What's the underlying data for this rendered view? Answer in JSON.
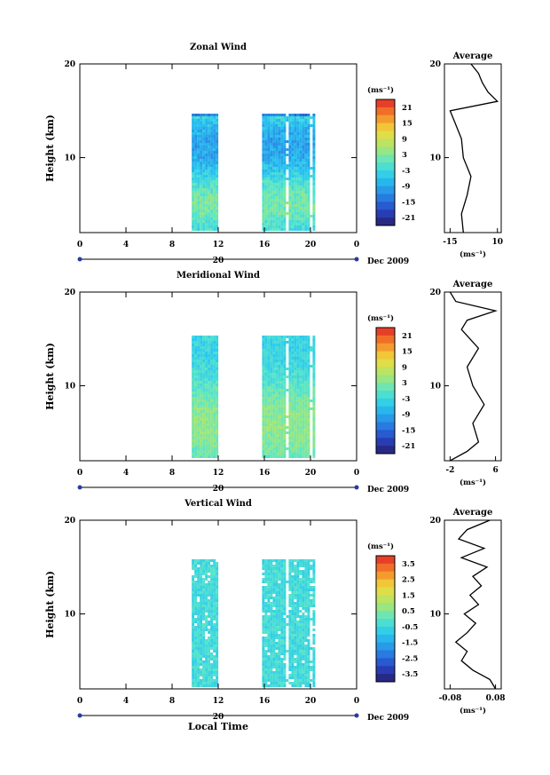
{
  "figure": {
    "xlabel": "Local Time",
    "date_label": "Dec 2009",
    "day_label": "20"
  },
  "chart_data": [
    {
      "type": "heatmap",
      "title": "Zonal Wind",
      "xlabel": "Local Time",
      "ylabel": "Height (km)",
      "xlim": [
        0,
        24
      ],
      "ylim": [
        2,
        20
      ],
      "x_ticks": [
        "0",
        "4",
        "8",
        "12",
        "16",
        "20",
        "0"
      ],
      "y_ticks": [
        "20",
        "10"
      ],
      "data_columns_hours": [
        [
          9.7,
          11.9
        ],
        [
          15.8,
          20.2
        ]
      ],
      "colorbar": {
        "unit": "(ms⁻¹)",
        "range": [
          -24,
          24
        ],
        "ticks": [
          "21",
          "15",
          "9",
          "3",
          "-3",
          "-9",
          "-15",
          "-21"
        ]
      },
      "average_profile": {
        "title": "Average",
        "x_ticks": [
          "-15",
          "10"
        ],
        "xlim": [
          -18,
          12
        ],
        "xlabel": "(ms⁻¹)",
        "heights": [
          2,
          4,
          6,
          8,
          10,
          12,
          14,
          15,
          16,
          17,
          18,
          19,
          20
        ],
        "values": [
          -8,
          -9,
          -6,
          -4,
          -8,
          -9,
          -13,
          -15,
          10,
          5,
          2,
          0,
          -4
        ]
      }
    },
    {
      "type": "heatmap",
      "title": "Meridional Wind",
      "xlabel": "Local Time",
      "ylabel": "Height (km)",
      "xlim": [
        0,
        24
      ],
      "ylim": [
        2,
        20
      ],
      "x_ticks": [
        "0",
        "4",
        "8",
        "12",
        "16",
        "20",
        "0"
      ],
      "y_ticks": [
        "20",
        "10"
      ],
      "data_columns_hours": [
        [
          9.7,
          11.9
        ],
        [
          15.8,
          20.2
        ]
      ],
      "colorbar": {
        "unit": "(ms⁻¹)",
        "range": [
          -24,
          24
        ],
        "ticks": [
          "21",
          "15",
          "9",
          "3",
          "-3",
          "-9",
          "-15",
          "-21"
        ]
      },
      "average_profile": {
        "title": "Average",
        "x_ticks": [
          "-2",
          "6"
        ],
        "xlim": [
          -3,
          7
        ],
        "xlabel": "(ms⁻¹)",
        "heights": [
          2,
          3,
          4,
          6,
          8,
          10,
          12,
          14,
          16,
          17,
          18,
          19,
          20
        ],
        "values": [
          -2,
          1,
          3,
          2,
          4,
          2,
          1,
          3,
          0,
          1,
          6,
          -1,
          -2
        ]
      }
    },
    {
      "type": "heatmap",
      "title": "Vertical Wind",
      "xlabel": "Local Time",
      "ylabel": "Height (km)",
      "xlim": [
        0,
        24
      ],
      "ylim": [
        2,
        20
      ],
      "x_ticks": [
        "0",
        "4",
        "8",
        "12",
        "16",
        "20",
        "0"
      ],
      "y_ticks": [
        "20",
        "10"
      ],
      "data_columns_hours": [
        [
          9.7,
          11.9
        ],
        [
          15.8,
          20.2
        ]
      ],
      "colorbar": {
        "unit": "(ms⁻¹)",
        "range": [
          -4,
          4
        ],
        "ticks": [
          "3.5",
          "2.5",
          "1.5",
          "0.5",
          "-0.5",
          "-1.5",
          "-2.5",
          "-3.5"
        ]
      },
      "average_profile": {
        "title": "Average",
        "x_ticks": [
          "-0.08",
          "0.08"
        ],
        "xlim": [
          -0.1,
          0.1
        ],
        "xlabel": "(ms⁻¹)",
        "heights": [
          2,
          3,
          4,
          5,
          6,
          7,
          8,
          9,
          10,
          11,
          12,
          13,
          14,
          15,
          16,
          17,
          18,
          19,
          20
        ],
        "values": [
          0.08,
          0.06,
          0.0,
          -0.04,
          -0.02,
          -0.06,
          -0.02,
          0.01,
          -0.03,
          0.02,
          -0.01,
          0.03,
          0.0,
          0.05,
          -0.04,
          0.04,
          -0.05,
          -0.02,
          0.06
        ]
      }
    }
  ]
}
